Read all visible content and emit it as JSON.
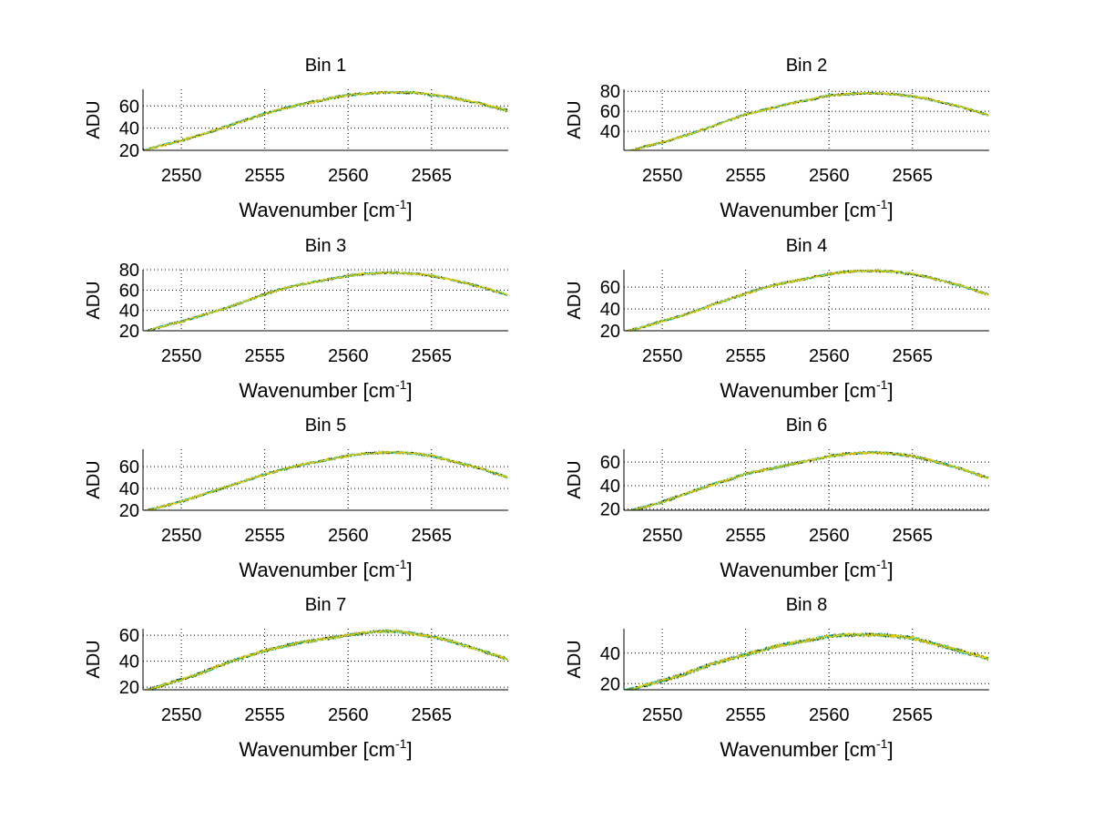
{
  "chart_data": {
    "type": "line",
    "layout": "4x2 subplots",
    "xlabel": "Wavenumber [cm",
    "xlabel_superscript": "-1",
    "xlabel_close": "]",
    "ylabel": "ADU",
    "xlim": [
      2547.7,
      2569.6
    ],
    "xticks": [
      2550,
      2555,
      2560,
      2565
    ],
    "grid": true,
    "x": [
      2548,
      2549,
      2550,
      2551,
      2552,
      2553,
      2554,
      2555,
      2556,
      2557,
      2558,
      2559,
      2560,
      2561,
      2562,
      2563,
      2564,
      2565,
      2566,
      2567,
      2568,
      2569
    ],
    "line_colors": [
      "#000000",
      "#00bfbf",
      "#3c9a3c",
      "#f5d000"
    ],
    "subplots": [
      {
        "title": "Bin 1",
        "ylim": [
          20,
          75
        ],
        "yticks": [
          20,
          40,
          60
        ],
        "values": [
          21,
          25,
          29,
          33,
          38,
          43,
          48,
          53,
          57,
          61,
          64,
          67,
          70,
          71,
          72,
          72,
          72,
          70,
          68,
          65,
          62,
          58
        ]
      },
      {
        "title": "Bin 2",
        "ylim": [
          21,
          82
        ],
        "yticks": [
          40,
          60,
          80
        ],
        "values": [
          20,
          25,
          29,
          34,
          39,
          45,
          51,
          57,
          61,
          65,
          69,
          72,
          76,
          77,
          78,
          78,
          77,
          75,
          72,
          68,
          64,
          59
        ]
      },
      {
        "title": "Bin 3",
        "ylim": [
          20,
          80
        ],
        "yticks": [
          20,
          40,
          60,
          80
        ],
        "values": [
          20,
          25,
          29,
          34,
          39,
          44,
          50,
          56,
          61,
          65,
          68,
          71,
          74,
          76,
          77,
          77,
          76,
          74,
          71,
          67,
          63,
          58
        ]
      },
      {
        "title": "Bin 4",
        "ylim": [
          20,
          76
        ],
        "yticks": [
          20,
          40,
          60
        ],
        "values": [
          20,
          24,
          29,
          33,
          38,
          44,
          49,
          54,
          59,
          63,
          66,
          69,
          72,
          74,
          75,
          75,
          74,
          72,
          69,
          65,
          61,
          56
        ]
      },
      {
        "title": "Bin 5",
        "ylim": [
          20,
          76
        ],
        "yticks": [
          20,
          40,
          60
        ],
        "values": [
          20,
          24,
          28,
          33,
          38,
          43,
          48,
          53,
          57,
          61,
          64,
          67,
          70,
          72,
          73,
          73,
          72,
          70,
          66,
          62,
          58,
          53
        ]
      },
      {
        "title": "Bin 6",
        "ylim": [
          19,
          71
        ],
        "yticks": [
          20,
          40,
          60
        ],
        "values": [
          18,
          22,
          26,
          31,
          36,
          41,
          45,
          50,
          53,
          56,
          59,
          62,
          65,
          67,
          68,
          68,
          67,
          65,
          62,
          58,
          54,
          49
        ]
      },
      {
        "title": "Bin 7",
        "ylim": [
          18,
          65
        ],
        "yticks": [
          20,
          40,
          60
        ],
        "values": [
          18,
          22,
          26,
          30,
          35,
          40,
          44,
          48,
          51,
          54,
          56,
          58,
          60,
          62,
          63,
          63,
          61,
          59,
          56,
          52,
          48,
          44
        ]
      },
      {
        "title": "Bin 8",
        "ylim": [
          16,
          56
        ],
        "yticks": [
          20,
          40
        ],
        "values": [
          16,
          19,
          22,
          25,
          29,
          33,
          36,
          39,
          42,
          45,
          47,
          49,
          51,
          52,
          52,
          52,
          51,
          50,
          47,
          44,
          41,
          38
        ]
      }
    ]
  }
}
